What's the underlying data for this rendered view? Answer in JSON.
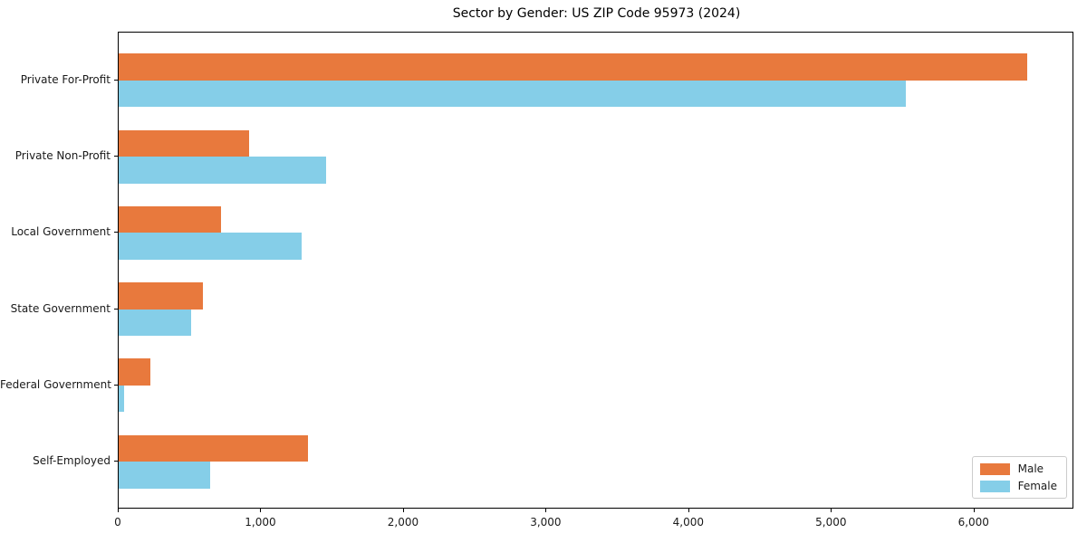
{
  "title": "Sector by Gender: US ZIP Code 95973 (2024)",
  "colors": {
    "male": "#e8793d",
    "female": "#85cee8",
    "axis": "#000000",
    "text": "#1a1a1a",
    "legend_border": "#cccccc"
  },
  "chart_data": {
    "type": "bar",
    "orientation": "horizontal",
    "title": "Sector by Gender: US ZIP Code 95973 (2024)",
    "categories": [
      "Private For-Profit",
      "Private Non-Profit",
      "Local Government",
      "State Government",
      "Federal Government",
      "Self-Employed"
    ],
    "series": [
      {
        "name": "Male",
        "color": "#e8793d",
        "values": [
          6370,
          915,
          720,
          590,
          225,
          1325
        ]
      },
      {
        "name": "Female",
        "color": "#85cee8",
        "values": [
          5520,
          1455,
          1280,
          505,
          35,
          640
        ]
      }
    ],
    "xlabel": "",
    "ylabel": "",
    "xlim": [
      0,
      6700
    ],
    "xticks": [
      0,
      1000,
      2000,
      3000,
      4000,
      5000,
      6000
    ],
    "xtick_labels": [
      "0",
      "1,000",
      "2,000",
      "3,000",
      "4,000",
      "5,000",
      "6,000"
    ],
    "grid": false,
    "legend_position": "lower right"
  }
}
